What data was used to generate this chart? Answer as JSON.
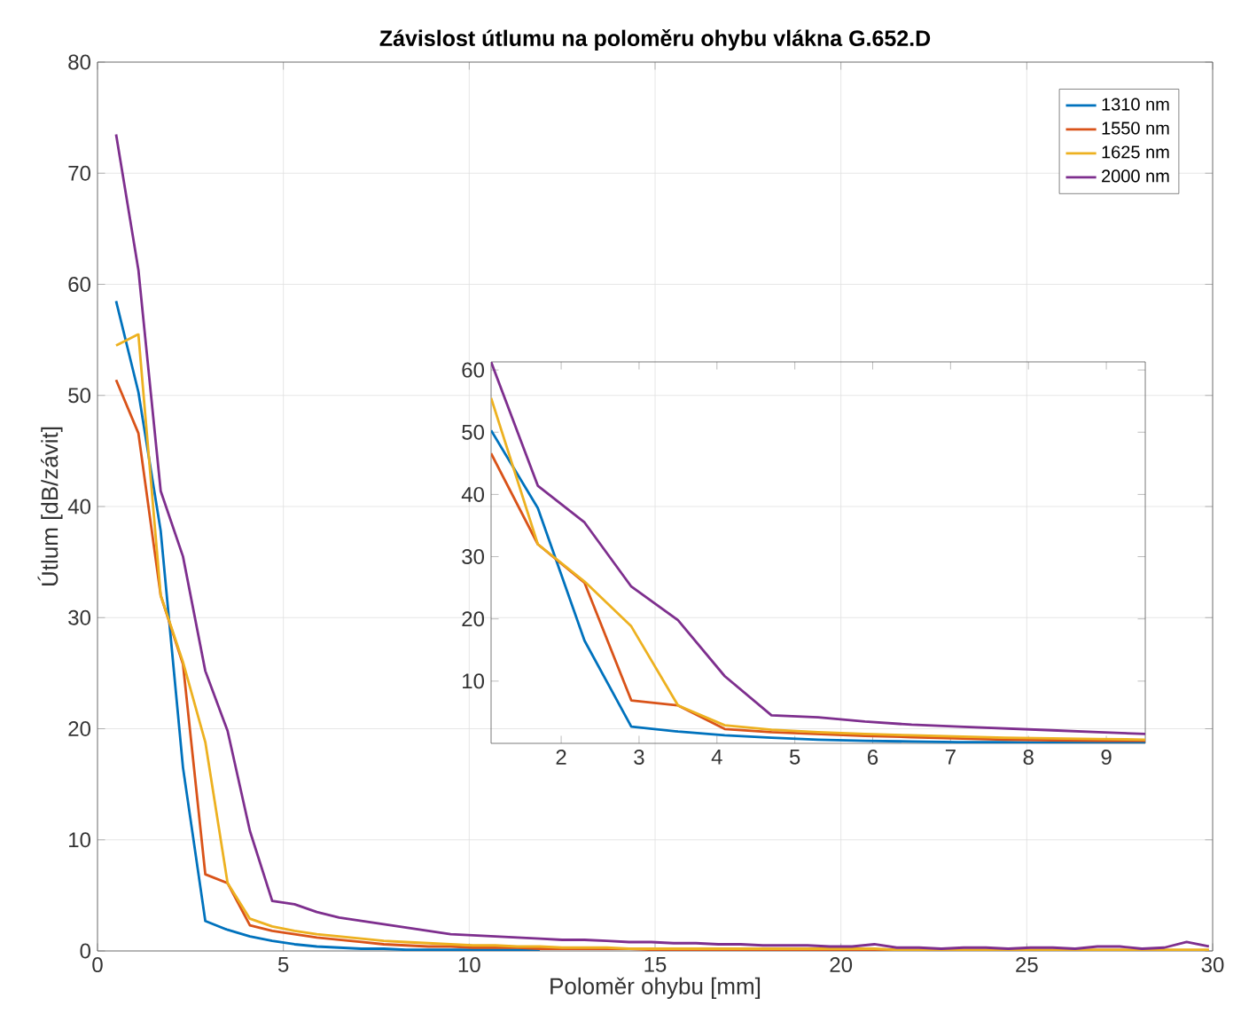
{
  "chart_data": [
    {
      "type": "line",
      "title": "Závislost útlumu na poloměru ohybu vlákna G.652.D",
      "xlabel": "Poloměr ohybu [mm]",
      "ylabel": "Útlum [dB/závit]",
      "x": [
        0.5,
        1.1,
        1.7,
        2.3,
        2.9,
        3.5,
        4.1,
        4.7,
        5.3,
        5.9,
        6.5,
        7.1,
        7.7,
        8.3,
        8.9,
        9.5,
        10.1,
        10.7,
        11.3,
        11.9,
        12.5,
        13.1,
        13.7,
        14.3,
        14.9,
        15.5,
        16.1,
        16.7,
        17.3,
        17.9,
        18.5,
        19.1,
        19.7,
        20.3,
        20.9,
        21.5,
        22.1,
        22.7,
        23.3,
        23.9,
        24.5,
        25.1,
        25.7,
        26.3,
        26.9,
        27.5,
        28.1,
        28.7,
        29.3,
        29.9
      ],
      "series": [
        {
          "name": "1310 nm",
          "color": "#0072bd",
          "values": [
            58.5,
            50.3,
            37.8,
            16.5,
            2.7,
            1.9,
            1.3,
            0.9,
            0.6,
            0.4,
            0.3,
            0.2,
            0.2,
            0.1,
            0.1,
            0.1,
            0.1,
            0.1,
            0.1,
            0.1,
            null,
            null,
            null,
            null,
            null,
            null,
            null,
            null,
            null,
            null,
            null,
            null,
            null,
            null,
            null,
            null,
            null,
            null,
            null,
            null,
            null,
            null,
            null,
            null,
            null,
            null,
            null,
            null,
            null,
            null
          ]
        },
        {
          "name": "1550 nm",
          "color": "#d95319",
          "values": [
            51.4,
            46.6,
            32,
            25.8,
            6.9,
            6.1,
            2.3,
            1.8,
            1.5,
            1.2,
            1.0,
            0.8,
            0.6,
            0.5,
            0.4,
            0.4,
            0.3,
            0.3,
            0.3,
            0.2,
            0.2,
            0.2,
            0.2,
            0.2,
            0.1,
            0.1,
            0.1,
            0.1,
            0.1,
            0.1,
            0.1,
            0.1,
            0.1,
            0.1,
            0.1,
            0,
            0,
            0,
            0,
            0,
            0,
            0,
            0,
            0,
            0,
            0,
            0,
            0,
            0,
            0
          ]
        },
        {
          "name": "1625 nm",
          "color": "#edb120",
          "values": [
            54.5,
            55.5,
            32,
            26,
            18.8,
            6.1,
            2.9,
            2.2,
            1.8,
            1.5,
            1.3,
            1.1,
            0.9,
            0.8,
            0.7,
            0.6,
            0.5,
            0.5,
            0.4,
            0.4,
            0.3,
            0.3,
            0.3,
            0.2,
            0.2,
            0.2,
            0.2,
            0.2,
            0.2,
            0.2,
            0.2,
            0.2,
            0.2,
            0.2,
            0.2,
            0.1,
            0.1,
            0.1,
            0.1,
            0.1,
            0.1,
            0.1,
            0.1,
            0.1,
            0.1,
            0.1,
            0.1,
            0.1,
            0.1,
            0.1
          ]
        },
        {
          "name": "2000 nm",
          "color": "#7e2f8e",
          "values": [
            73.5,
            61.3,
            41.4,
            35.5,
            25.2,
            19.8,
            10.8,
            4.5,
            4.2,
            3.5,
            3.0,
            2.7,
            2.4,
            2.1,
            1.8,
            1.5,
            1.4,
            1.3,
            1.2,
            1.1,
            1.0,
            1.0,
            0.9,
            0.8,
            0.8,
            0.7,
            0.7,
            0.6,
            0.6,
            0.5,
            0.5,
            0.5,
            0.4,
            0.4,
            0.6,
            0.3,
            0.3,
            0.2,
            0.3,
            0.3,
            0.2,
            0.3,
            0.3,
            0.2,
            0.4,
            0.4,
            0.2,
            0.3,
            0.8,
            0.4
          ]
        }
      ],
      "xlim": [
        0,
        30
      ],
      "ylim": [
        0,
        80
      ],
      "xticks": [
        0,
        5,
        10,
        15,
        20,
        25,
        30
      ],
      "yticks": [
        0,
        10,
        20,
        30,
        40,
        50,
        60,
        70,
        80
      ],
      "grid": true,
      "legend": "top right",
      "line_style": "solid"
    },
    {
      "type": "line",
      "x": [
        1.1,
        1.7,
        2.3,
        2.9,
        3.5,
        4.1,
        4.7,
        5.3,
        5.9,
        6.5,
        7.1,
        7.7,
        8.3,
        8.9,
        9.5
      ],
      "series": [
        {
          "color": "#0072bd",
          "values": [
            50.3,
            37.8,
            16.5,
            2.7,
            1.9,
            1.3,
            0.9,
            0.6,
            0.4,
            0.3,
            0.2,
            0.2,
            0.1,
            0.1,
            0.1
          ]
        },
        {
          "color": "#d95319",
          "values": [
            46.6,
            32,
            25.8,
            6.9,
            6.1,
            2.3,
            1.8,
            1.5,
            1.2,
            1.0,
            0.8,
            0.6,
            0.5,
            0.4,
            0.4
          ]
        },
        {
          "color": "#edb120",
          "values": [
            55.5,
            32,
            26,
            18.8,
            6.1,
            2.9,
            2.2,
            1.8,
            1.5,
            1.3,
            1.1,
            0.9,
            0.8,
            0.7,
            0.6
          ]
        },
        {
          "color": "#7e2f8e",
          "values": [
            61.3,
            41.4,
            35.5,
            25.2,
            19.8,
            10.8,
            4.5,
            4.2,
            3.5,
            3.0,
            2.7,
            2.4,
            2.1,
            1.8,
            1.5
          ]
        }
      ],
      "xlim": [
        1.1,
        9.5
      ],
      "ylim": [
        0,
        61.3
      ],
      "xticks": [
        2,
        3,
        4,
        5,
        6,
        7,
        8,
        9
      ],
      "yticks": [
        10,
        20,
        30,
        40,
        50,
        60
      ],
      "line_style": "solid"
    }
  ]
}
